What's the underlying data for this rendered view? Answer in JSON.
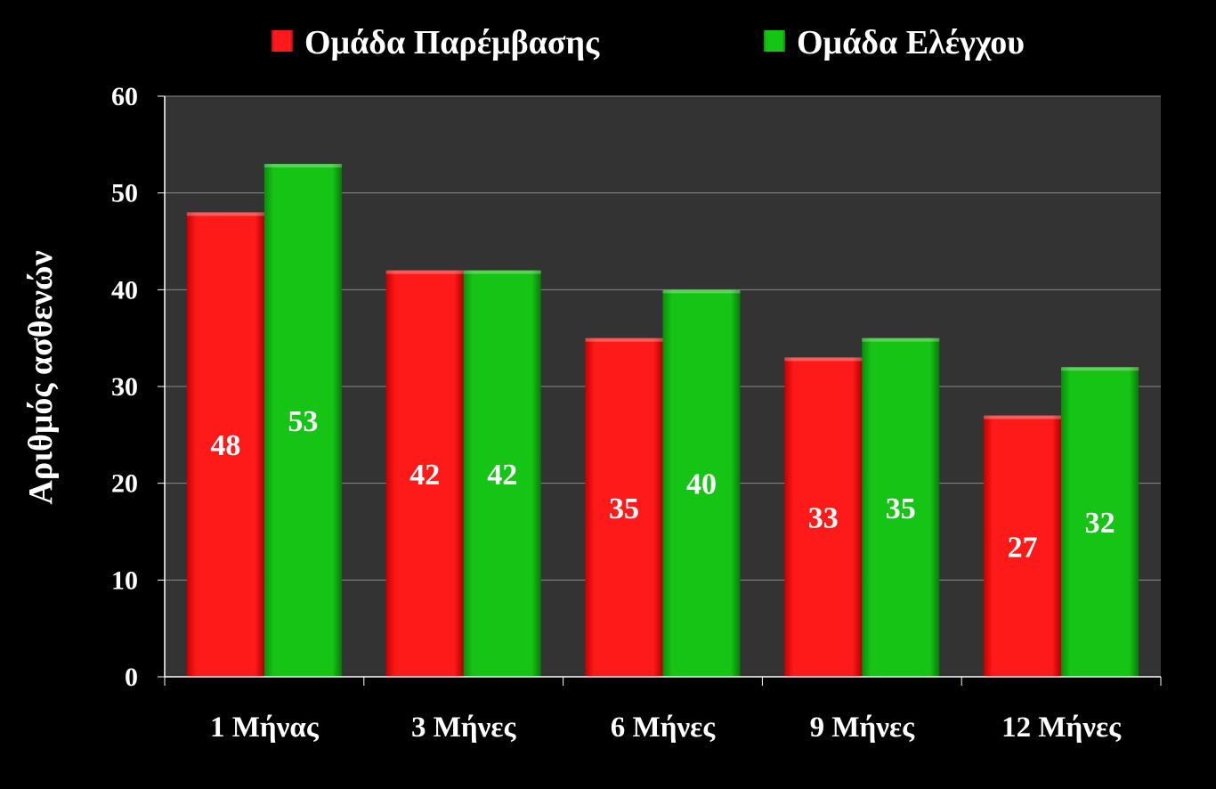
{
  "chart_data": {
    "type": "bar",
    "categories": [
      "1 Μήνας",
      "3 Μήνες",
      "6 Μήνες",
      "9 Μήνες",
      "12 Μήνες"
    ],
    "series": [
      {
        "name": "Ομάδα Παρέμβασης",
        "values": [
          48,
          42,
          35,
          33,
          27
        ],
        "color": "#ff0000"
      },
      {
        "name": "Ομάδα Ελέγχου",
        "values": [
          53,
          42,
          40,
          35,
          32
        ],
        "color": "#12b812"
      }
    ],
    "ylabel": "Αριθμός ασθενών",
    "ylim": [
      0,
      60
    ],
    "yticks": [
      0,
      10,
      20,
      30,
      40,
      50,
      60
    ],
    "grid": true,
    "legend_position": "top",
    "plot_background": "#333333"
  }
}
